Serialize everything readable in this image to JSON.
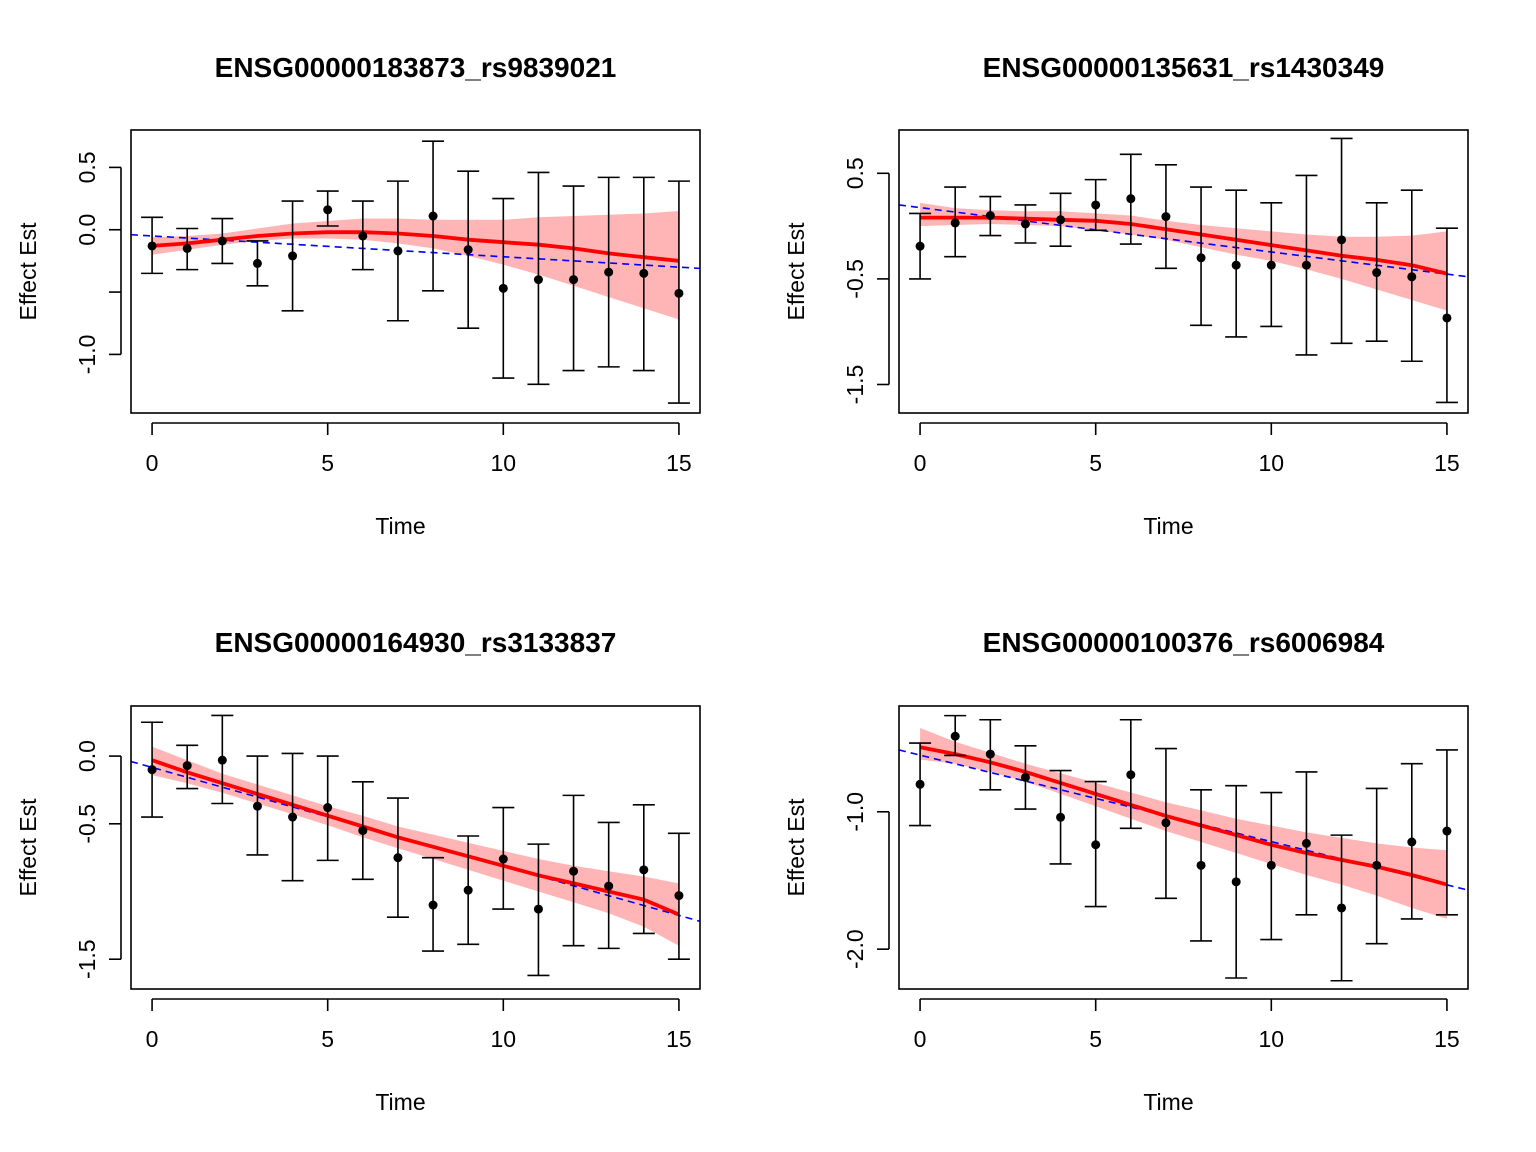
{
  "chart_data": [
    {
      "type": "scatter",
      "title": "ENSG00000183873_rs9839021",
      "xlabel": "Time",
      "ylabel": "Effect Est",
      "xlim": [
        -0.6,
        15.6
      ],
      "ylim": [
        -1.47,
        0.8
      ],
      "xticks": [
        0,
        5,
        10,
        15
      ],
      "yticks": [
        -1.0,
        -0.5,
        0.0,
        0.5
      ],
      "ytick_labels": [
        "-1.0",
        "",
        "0.0",
        "0.5"
      ],
      "x": [
        0,
        1,
        2,
        3,
        4,
        5,
        6,
        7,
        8,
        9,
        10,
        11,
        12,
        13,
        14,
        15
      ],
      "points": [
        -0.13,
        -0.15,
        -0.09,
        -0.27,
        -0.21,
        0.16,
        -0.05,
        -0.17,
        0.11,
        -0.16,
        -0.47,
        -0.4,
        -0.4,
        -0.34,
        -0.35,
        -0.51
      ],
      "err_lower": [
        -0.35,
        -0.32,
        -0.27,
        -0.45,
        -0.65,
        0.03,
        -0.32,
        -0.73,
        -0.49,
        -0.79,
        -1.19,
        -1.24,
        -1.13,
        -1.1,
        -1.13,
        -1.39
      ],
      "err_upper": [
        0.1,
        0.01,
        0.09,
        -0.09,
        0.23,
        0.31,
        0.23,
        0.39,
        0.71,
        0.47,
        0.25,
        0.46,
        0.35,
        0.42,
        0.42,
        0.39
      ],
      "smooth": [
        -0.13,
        -0.11,
        -0.08,
        -0.05,
        -0.03,
        -0.02,
        -0.02,
        -0.03,
        -0.05,
        -0.08,
        -0.1,
        -0.12,
        -0.15,
        -0.19,
        -0.22,
        -0.25
      ],
      "band_lower": [
        -0.2,
        -0.16,
        -0.12,
        -0.09,
        -0.07,
        -0.07,
        -0.08,
        -0.11,
        -0.15,
        -0.21,
        -0.28,
        -0.36,
        -0.45,
        -0.54,
        -0.63,
        -0.72
      ],
      "band_upper": [
        -0.06,
        -0.05,
        -0.03,
        0.01,
        0.05,
        0.07,
        0.09,
        0.09,
        0.08,
        0.08,
        0.08,
        0.1,
        0.11,
        0.12,
        0.13,
        0.15
      ],
      "trend": {
        "x": [
          -0.6,
          15.6
        ],
        "y": [
          -0.04,
          -0.31
        ]
      }
    },
    {
      "type": "scatter",
      "title": "ENSG00000135631_rs1430349",
      "xlabel": "Time",
      "ylabel": "Effect Est",
      "xlim": [
        -0.6,
        15.6
      ],
      "ylim": [
        -1.77,
        0.91
      ],
      "xticks": [
        0,
        5,
        10,
        15
      ],
      "yticks": [
        -1.5,
        -0.5,
        0.5
      ],
      "ytick_labels": [
        "-1.5",
        "-0.5",
        "0.5"
      ],
      "x": [
        0,
        1,
        2,
        3,
        4,
        5,
        6,
        7,
        8,
        9,
        10,
        11,
        12,
        13,
        14,
        15
      ],
      "points": [
        -0.19,
        0.03,
        0.1,
        0.02,
        0.06,
        0.2,
        0.26,
        0.09,
        -0.3,
        -0.37,
        -0.37,
        -0.37,
        -0.13,
        -0.44,
        -0.48,
        -0.87
      ],
      "err_lower": [
        -0.5,
        -0.29,
        -0.09,
        -0.16,
        -0.19,
        -0.04,
        -0.17,
        -0.4,
        -0.94,
        -1.05,
        -0.95,
        -1.22,
        -1.11,
        -1.09,
        -1.28,
        -1.67
      ],
      "err_upper": [
        0.12,
        0.37,
        0.28,
        0.2,
        0.31,
        0.44,
        0.68,
        0.58,
        0.37,
        0.34,
        0.22,
        0.48,
        0.83,
        0.22,
        0.34,
        -0.02
      ],
      "smooth": [
        0.08,
        0.08,
        0.08,
        0.07,
        0.06,
        0.05,
        0.02,
        -0.03,
        -0.08,
        -0.13,
        -0.18,
        -0.23,
        -0.28,
        -0.32,
        -0.37,
        -0.45
      ],
      "band_lower": [
        0.0,
        0.01,
        0.02,
        0.01,
        0.0,
        -0.04,
        -0.08,
        -0.13,
        -0.2,
        -0.27,
        -0.33,
        -0.41,
        -0.5,
        -0.6,
        -0.7,
        -0.8
      ],
      "band_upper": [
        0.22,
        0.17,
        0.15,
        0.14,
        0.14,
        0.12,
        0.1,
        0.05,
        0.01,
        -0.02,
        -0.05,
        -0.08,
        -0.1,
        -0.1,
        -0.09,
        -0.05
      ],
      "trend": {
        "x": [
          -0.6,
          15.6
        ],
        "y": [
          0.2,
          -0.48
        ]
      }
    },
    {
      "type": "scatter",
      "title": "ENSG00000164930_rs3133837",
      "xlabel": "Time",
      "ylabel": "Effect Est",
      "xlim": [
        -0.6,
        15.6
      ],
      "ylim": [
        -1.72,
        0.37
      ],
      "xticks": [
        0,
        5,
        10,
        15
      ],
      "yticks": [
        -1.5,
        -0.5,
        0.0
      ],
      "ytick_labels": [
        "-1.5",
        "-0.5",
        "0.0"
      ],
      "x": [
        0,
        1,
        2,
        3,
        4,
        5,
        6,
        7,
        8,
        9,
        10,
        11,
        12,
        13,
        14,
        15
      ],
      "points": [
        -0.1,
        -0.07,
        -0.03,
        -0.37,
        -0.45,
        -0.38,
        -0.55,
        -0.75,
        -1.1,
        -0.99,
        -0.76,
        -1.13,
        -0.85,
        -0.96,
        -0.84,
        -1.03
      ],
      "err_lower": [
        -0.45,
        -0.24,
        -0.35,
        -0.73,
        -0.92,
        -0.77,
        -0.91,
        -1.19,
        -1.44,
        -1.39,
        -1.13,
        -1.62,
        -1.4,
        -1.42,
        -1.31,
        -1.5
      ],
      "err_upper": [
        0.25,
        0.08,
        0.3,
        0.0,
        0.02,
        0.0,
        -0.19,
        -0.31,
        -0.75,
        -0.59,
        -0.38,
        -0.65,
        -0.29,
        -0.49,
        -0.36,
        -0.57
      ],
      "smooth": [
        -0.03,
        -0.12,
        -0.2,
        -0.28,
        -0.36,
        -0.44,
        -0.52,
        -0.6,
        -0.67,
        -0.74,
        -0.81,
        -0.88,
        -0.94,
        -1.0,
        -1.06,
        -1.17
      ],
      "band_lower": [
        -0.14,
        -0.2,
        -0.27,
        -0.35,
        -0.43,
        -0.51,
        -0.6,
        -0.68,
        -0.76,
        -0.84,
        -0.92,
        -1.0,
        -1.08,
        -1.16,
        -1.26,
        -1.4
      ],
      "band_upper": [
        0.07,
        -0.03,
        -0.13,
        -0.21,
        -0.29,
        -0.37,
        -0.44,
        -0.52,
        -0.58,
        -0.64,
        -0.7,
        -0.76,
        -0.81,
        -0.85,
        -0.89,
        -0.94
      ],
      "trend": {
        "x": [
          -0.6,
          15.6
        ],
        "y": [
          -0.04,
          -1.22
        ]
      }
    },
    {
      "type": "scatter",
      "title": "ENSG00000100376_rs6006984",
      "xlabel": "Time",
      "ylabel": "Effect Est",
      "xlim": [
        -0.6,
        15.6
      ],
      "ylim": [
        -2.29,
        -0.23
      ],
      "xticks": [
        0,
        5,
        10,
        15
      ],
      "yticks": [
        -2.0,
        -1.0
      ],
      "ytick_labels": [
        "-2.0",
        "-1.0"
      ],
      "x": [
        0,
        1,
        2,
        3,
        4,
        5,
        6,
        7,
        8,
        9,
        10,
        11,
        12,
        13,
        14,
        15
      ],
      "points": [
        -0.8,
        -0.45,
        -0.58,
        -0.75,
        -1.04,
        -1.24,
        -0.73,
        -1.08,
        -1.39,
        -1.51,
        -1.39,
        -1.23,
        -1.7,
        -1.39,
        -1.22,
        -1.14
      ],
      "err_lower": [
        -1.1,
        -0.59,
        -0.84,
        -0.98,
        -1.38,
        -1.69,
        -1.12,
        -1.63,
        -1.94,
        -2.21,
        -1.93,
        -1.75,
        -2.23,
        -1.96,
        -1.78,
        -1.75
      ],
      "err_upper": [
        -0.5,
        -0.3,
        -0.33,
        -0.52,
        -0.7,
        -0.78,
        -0.33,
        -0.54,
        -0.84,
        -0.81,
        -0.86,
        -0.71,
        -1.17,
        -0.83,
        -0.65,
        -0.55
      ],
      "smooth": [
        -0.53,
        -0.58,
        -0.64,
        -0.71,
        -0.79,
        -0.87,
        -0.95,
        -1.03,
        -1.1,
        -1.17,
        -1.24,
        -1.3,
        -1.35,
        -1.4,
        -1.46,
        -1.53
      ],
      "band_lower": [
        -0.62,
        -0.65,
        -0.71,
        -0.78,
        -0.87,
        -0.96,
        -1.05,
        -1.14,
        -1.22,
        -1.3,
        -1.38,
        -1.46,
        -1.53,
        -1.61,
        -1.7,
        -1.78
      ],
      "band_upper": [
        -0.39,
        -0.49,
        -0.57,
        -0.65,
        -0.72,
        -0.79,
        -0.86,
        -0.93,
        -0.99,
        -1.05,
        -1.1,
        -1.15,
        -1.19,
        -1.23,
        -1.26,
        -1.28
      ],
      "trend": {
        "x": [
          -0.6,
          15.6
        ],
        "y": [
          -0.55,
          -1.57
        ]
      }
    }
  ],
  "colors": {
    "points": "#000000",
    "errorbars": "#000000",
    "smooth_line": "#ff0000",
    "band_fill": "#ff9999",
    "trend_line": "#0000ff",
    "axes": "#000000"
  }
}
